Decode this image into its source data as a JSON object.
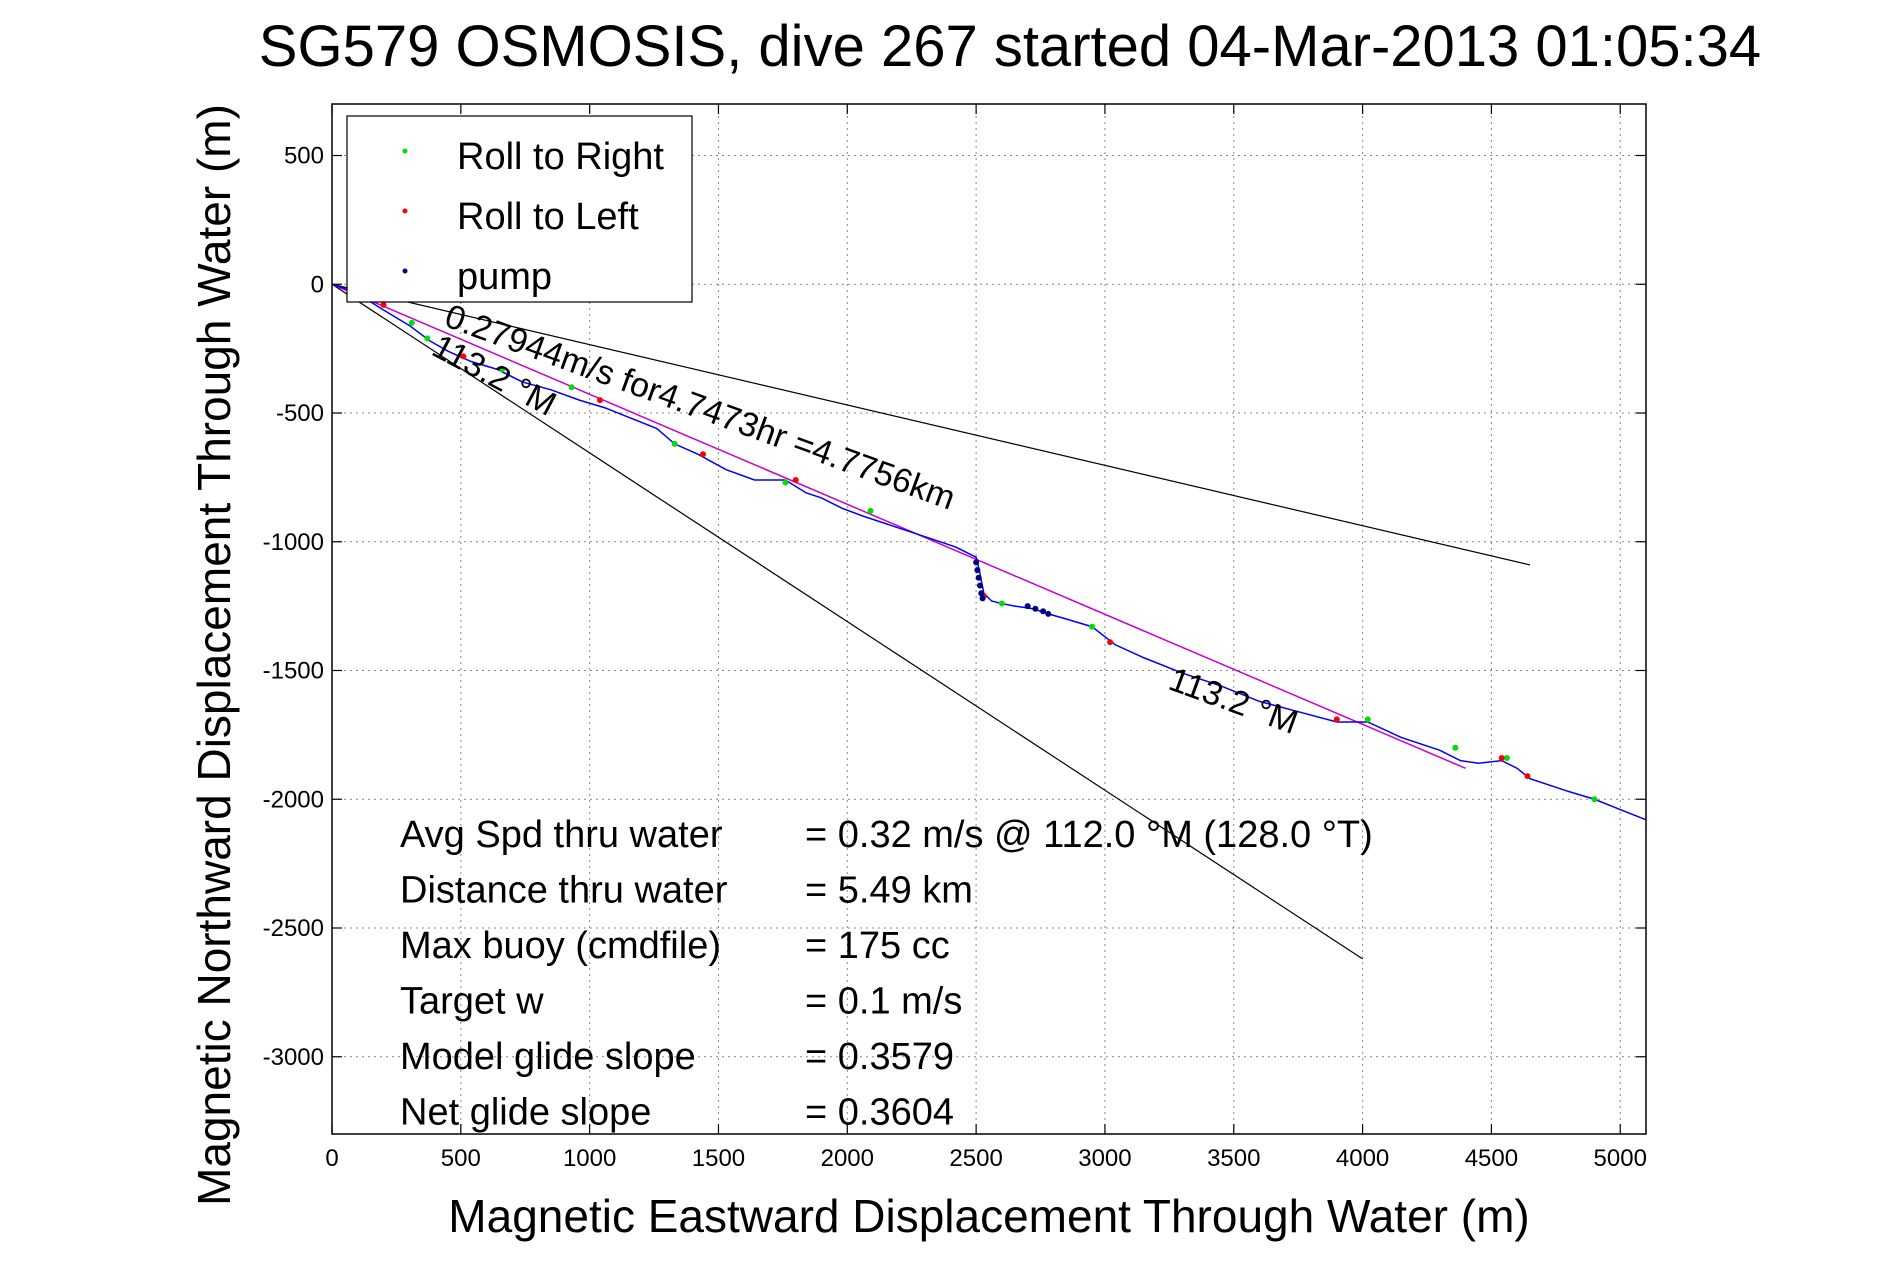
{
  "chart_data": {
    "type": "line",
    "title": "SG579 OSMOSIS, dive 267 started 04-Mar-2013 01:05:34",
    "xlabel": "Magnetic Eastward Displacement Through Water (m)",
    "ylabel": "Magnetic Northward Displacement Through Water (m)",
    "xlim": [
      0,
      5100
    ],
    "ylim": [
      -3300,
      700
    ],
    "xticks": [
      0,
      500,
      1000,
      1500,
      2000,
      2500,
      3000,
      3500,
      4000,
      4500,
      5000
    ],
    "yticks": [
      500,
      0,
      -500,
      -1000,
      -1500,
      -2000,
      -2500,
      -3000
    ],
    "grid": true,
    "legend_position": "top-left",
    "legend": [
      {
        "label": "Roll to Right",
        "color": "#00dd00"
      },
      {
        "label": "Roll to Left",
        "color": "#ff0000"
      },
      {
        "label": "pump",
        "color": "#000080"
      }
    ],
    "track_color": "#0000ff",
    "heading_line_color": "#cc00cc",
    "series": [
      {
        "color": "#0000ff",
        "x": [
          0,
          60,
          120,
          200,
          300,
          380,
          450,
          540,
          640,
          740,
          850,
          960,
          1060,
          1160,
          1260,
          1330,
          1420,
          1530,
          1640,
          1760,
          1840,
          1900,
          1980,
          2060,
          2180,
          2300,
          2420,
          2500,
          2510,
          2520,
          2530,
          2560,
          2600,
          2650,
          2720,
          2780,
          2850,
          2950,
          3040,
          3150,
          3300,
          3450,
          3600,
          3750,
          3900,
          4020,
          4150,
          4300,
          4380,
          4450,
          4540,
          4600,
          4650,
          4800,
          4900,
          5000,
          5100
        ],
        "y": [
          0,
          -20,
          -50,
          -100,
          -160,
          -220,
          -260,
          -300,
          -330,
          -380,
          -410,
          -450,
          -480,
          -520,
          -560,
          -620,
          -660,
          -720,
          -760,
          -760,
          -810,
          -830,
          -870,
          -900,
          -940,
          -980,
          -1020,
          -1060,
          -1100,
          -1150,
          -1200,
          -1230,
          -1240,
          -1250,
          -1260,
          -1280,
          -1300,
          -1330,
          -1400,
          -1450,
          -1510,
          -1560,
          -1620,
          -1660,
          -1700,
          -1700,
          -1760,
          -1810,
          -1850,
          -1860,
          -1850,
          -1880,
          -1920,
          -1970,
          -2000,
          -2040,
          -2080
        ]
      }
    ],
    "heading_line": {
      "x": [
        0,
        4400
      ],
      "y": [
        0,
        -1880
      ]
    },
    "heading_ref_lines": [
      {
        "x": [
          0,
          4650
        ],
        "y": [
          0,
          -1090
        ]
      },
      {
        "x": [
          0,
          4000
        ],
        "y": [
          0,
          -2620
        ]
      }
    ],
    "markers": {
      "roll_right": {
        "x": [
          80,
          310,
          370,
          660,
          930,
          1330,
          1760,
          2090,
          2600,
          2950,
          4020,
          4360,
          4560,
          4900
        ],
        "y": [
          -30,
          -150,
          -210,
          -330,
          -400,
          -620,
          -770,
          -880,
          -1240,
          -1330,
          -1690,
          -1800,
          -1840,
          -2000
        ]
      },
      "roll_left": {
        "x": [
          200,
          510,
          1040,
          1440,
          1800,
          2530,
          3020,
          3900,
          4540,
          4640
        ],
        "y": [
          -80,
          -280,
          -450,
          -660,
          -760,
          -1210,
          -1390,
          -1690,
          -1840,
          -1910
        ]
      },
      "pump": {
        "x": [
          2500,
          2505,
          2510,
          2515,
          2520,
          2525,
          2700,
          2730,
          2760,
          2780
        ],
        "y": [
          -1080,
          -1110,
          -1140,
          -1170,
          -1200,
          -1220,
          -1250,
          -1260,
          -1270,
          -1280
        ]
      }
    },
    "annotations": [
      {
        "text": "0.27944m/s for4.7473hr =4.7756km",
        "x": 430,
        "y": -160,
        "angle": 20
      },
      {
        "text": "113.2 °M",
        "x": 380,
        "y": -270,
        "angle": 28
      },
      {
        "text": "113.2 °M",
        "x": 3240,
        "y": -1570,
        "angle": 20
      }
    ],
    "stats": [
      {
        "label": "Avg Spd thru water",
        "value": "=  0.32 m/s @ 112.0 °M (128.0 °T)"
      },
      {
        "label": "Distance thru water",
        "value": "=  5.49 km"
      },
      {
        "label": "Max buoy (cmdfile)",
        "value": "= 175 cc"
      },
      {
        "label": "Target w",
        "value": "= 0.1 m/s"
      },
      {
        "label": "Model glide slope",
        "value": "= 0.3579"
      },
      {
        "label": "Net glide slope",
        "value": "= 0.3604"
      }
    ]
  }
}
